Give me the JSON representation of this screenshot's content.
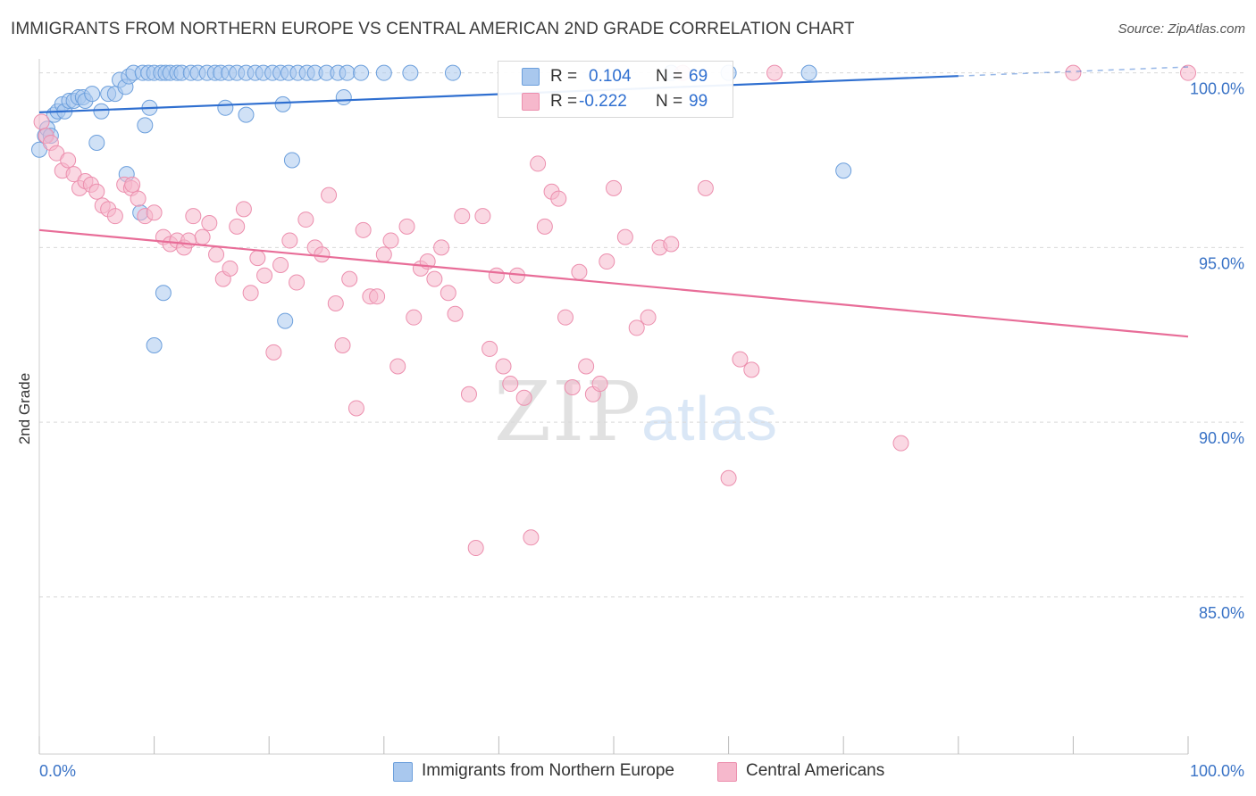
{
  "title": "IMMIGRANTS FROM NORTHERN EUROPE VS CENTRAL AMERICAN 2ND GRADE CORRELATION CHART",
  "source": "Source: ZipAtlas.com",
  "watermark": {
    "part1": "ZIP",
    "part2": "atlas"
  },
  "legend": {
    "r_label": "R =",
    "n_label": "N =",
    "rows": [
      {
        "r": "0.104",
        "n": "69"
      },
      {
        "r": "-0.222",
        "n": "99"
      }
    ]
  },
  "colors": {
    "blue_fill": "#a9c8ee",
    "blue_stroke": "#6c9fdc",
    "blue_line": "#2f6fd0",
    "pink_fill": "#f6b8cc",
    "pink_stroke": "#ec8fae",
    "pink_line": "#e86d98",
    "tick_text": "#3a73c6",
    "grid": "#d9d9d9"
  },
  "chart_data": {
    "type": "scatter",
    "title": "IMMIGRANTS FROM NORTHERN EUROPE VS CENTRAL AMERICAN 2ND GRADE CORRELATION CHART",
    "xlabel": "",
    "ylabel": "2nd Grade",
    "xlim": [
      0,
      100
    ],
    "ylim": [
      80.5,
      100.4
    ],
    "x_tick_labels": [
      "0.0%",
      "100.0%"
    ],
    "y_ticks": [
      100,
      95,
      90,
      85
    ],
    "y_tick_labels": [
      "100.0%",
      "95.0%",
      "90.0%",
      "85.0%"
    ],
    "grid": true,
    "legend_position": "top-center",
    "series": [
      {
        "name": "Immigrants from Northern Europe",
        "color": "#a9c8ee",
        "trend": {
          "x": [
            0,
            80
          ],
          "y": [
            98.87,
            99.91
          ]
        },
        "points": [
          [
            0,
            97.8
          ],
          [
            0.5,
            98.2
          ],
          [
            0.7,
            98.4
          ],
          [
            1.0,
            98.2
          ],
          [
            1.3,
            98.8
          ],
          [
            1.6,
            98.9
          ],
          [
            2.0,
            99.1
          ],
          [
            2.2,
            98.9
          ],
          [
            2.6,
            99.2
          ],
          [
            3.0,
            99.2
          ],
          [
            3.4,
            99.3
          ],
          [
            3.8,
            99.3
          ],
          [
            4.0,
            99.2
          ],
          [
            4.6,
            99.4
          ],
          [
            5.0,
            98.0
          ],
          [
            5.4,
            98.9
          ],
          [
            6.0,
            99.4
          ],
          [
            6.6,
            99.4
          ],
          [
            7.0,
            99.8
          ],
          [
            7.5,
            99.6
          ],
          [
            7.8,
            99.9
          ],
          [
            8.2,
            100
          ],
          [
            9.0,
            100
          ],
          [
            9.5,
            100
          ],
          [
            10.0,
            100
          ],
          [
            10.6,
            100
          ],
          [
            11.0,
            100
          ],
          [
            11.4,
            100
          ],
          [
            12.0,
            100
          ],
          [
            12.4,
            100
          ],
          [
            13.2,
            100
          ],
          [
            13.8,
            100
          ],
          [
            14.6,
            100
          ],
          [
            15.3,
            100
          ],
          [
            15.8,
            100
          ],
          [
            16.5,
            100
          ],
          [
            17.2,
            100
          ],
          [
            18.0,
            100
          ],
          [
            18.8,
            100
          ],
          [
            19.5,
            100
          ],
          [
            20.3,
            100
          ],
          [
            21.0,
            100
          ],
          [
            21.7,
            100
          ],
          [
            22.5,
            100
          ],
          [
            23.3,
            100
          ],
          [
            24.0,
            100
          ],
          [
            25.0,
            100
          ],
          [
            26.0,
            100
          ],
          [
            26.8,
            100
          ],
          [
            28.0,
            100
          ],
          [
            30.0,
            100
          ],
          [
            32.3,
            100
          ],
          [
            9.6,
            99.0
          ],
          [
            9.2,
            98.5
          ],
          [
            7.6,
            97.1
          ],
          [
            8.8,
            96.0
          ],
          [
            10.8,
            93.7
          ],
          [
            10.0,
            92.2
          ],
          [
            16.2,
            99.0
          ],
          [
            18.0,
            98.8
          ],
          [
            21.4,
            92.9
          ],
          [
            21.2,
            99.1
          ],
          [
            22.0,
            97.5
          ],
          [
            26.5,
            99.3
          ],
          [
            36.0,
            100
          ],
          [
            55.0,
            100
          ],
          [
            60.0,
            100
          ],
          [
            70.0,
            97.2
          ],
          [
            67.0,
            100
          ]
        ]
      },
      {
        "name": "Central Americans",
        "color": "#f6b8cc",
        "trend": {
          "x": [
            0,
            100
          ],
          "y": [
            95.5,
            92.45
          ]
        },
        "points": [
          [
            0.2,
            98.6
          ],
          [
            0.6,
            98.2
          ],
          [
            1.0,
            98.0
          ],
          [
            1.5,
            97.7
          ],
          [
            2.0,
            97.2
          ],
          [
            2.5,
            97.5
          ],
          [
            3.0,
            97.1
          ],
          [
            3.5,
            96.7
          ],
          [
            4.0,
            96.9
          ],
          [
            4.5,
            96.8
          ],
          [
            5.0,
            96.6
          ],
          [
            5.5,
            96.2
          ],
          [
            6.0,
            96.1
          ],
          [
            6.6,
            95.9
          ],
          [
            7.4,
            96.8
          ],
          [
            8.0,
            96.7
          ],
          [
            8.6,
            96.4
          ],
          [
            9.2,
            95.9
          ],
          [
            10.0,
            96.0
          ],
          [
            10.8,
            95.3
          ],
          [
            11.4,
            95.1
          ],
          [
            12.0,
            95.2
          ],
          [
            12.6,
            95.0
          ],
          [
            13.4,
            95.9
          ],
          [
            14.2,
            95.3
          ],
          [
            14.8,
            95.7
          ],
          [
            15.4,
            94.8
          ],
          [
            16.0,
            94.1
          ],
          [
            16.6,
            94.4
          ],
          [
            17.2,
            95.6
          ],
          [
            17.8,
            96.1
          ],
          [
            18.4,
            93.7
          ],
          [
            19.0,
            94.7
          ],
          [
            19.6,
            94.2
          ],
          [
            20.4,
            92.0
          ],
          [
            21.0,
            94.5
          ],
          [
            21.8,
            95.2
          ],
          [
            22.4,
            94.0
          ],
          [
            23.2,
            95.8
          ],
          [
            24.0,
            95.0
          ],
          [
            24.6,
            94.8
          ],
          [
            25.2,
            96.5
          ],
          [
            25.8,
            93.4
          ],
          [
            26.4,
            92.2
          ],
          [
            27.0,
            94.1
          ],
          [
            27.6,
            90.4
          ],
          [
            28.2,
            95.5
          ],
          [
            28.8,
            93.6
          ],
          [
            29.4,
            93.6
          ],
          [
            30.0,
            94.8
          ],
          [
            30.6,
            95.2
          ],
          [
            31.2,
            91.6
          ],
          [
            32.0,
            95.6
          ],
          [
            32.6,
            93.0
          ],
          [
            33.2,
            94.4
          ],
          [
            33.8,
            94.6
          ],
          [
            34.4,
            94.1
          ],
          [
            35.0,
            95.0
          ],
          [
            35.6,
            93.7
          ],
          [
            36.2,
            93.1
          ],
          [
            36.8,
            95.9
          ],
          [
            37.4,
            90.8
          ],
          [
            38.0,
            86.4
          ],
          [
            38.6,
            95.9
          ],
          [
            39.2,
            92.1
          ],
          [
            39.8,
            94.2
          ],
          [
            40.4,
            91.6
          ],
          [
            41.0,
            91.1
          ],
          [
            41.6,
            94.2
          ],
          [
            42.2,
            90.7
          ],
          [
            42.8,
            86.7
          ],
          [
            43.4,
            97.4
          ],
          [
            44.0,
            95.6
          ],
          [
            44.6,
            96.6
          ],
          [
            45.2,
            96.4
          ],
          [
            45.8,
            93.0
          ],
          [
            46.4,
            91.0
          ],
          [
            47.0,
            94.3
          ],
          [
            47.6,
            91.6
          ],
          [
            48.2,
            90.8
          ],
          [
            48.8,
            91.1
          ],
          [
            49.4,
            94.6
          ],
          [
            50.0,
            96.7
          ],
          [
            51.0,
            95.3
          ],
          [
            52.0,
            92.7
          ],
          [
            53.0,
            93.0
          ],
          [
            54.0,
            95.0
          ],
          [
            55.0,
            95.1
          ],
          [
            56.0,
            100
          ],
          [
            58.0,
            96.7
          ],
          [
            60.0,
            88.4
          ],
          [
            61.0,
            91.8
          ],
          [
            62.0,
            91.5
          ],
          [
            64.0,
            100
          ],
          [
            75.0,
            89.4
          ],
          [
            90.0,
            100
          ],
          [
            100,
            100
          ],
          [
            8.1,
            96.8
          ],
          [
            13.0,
            95.2
          ]
        ]
      }
    ]
  },
  "bottom_legend": [
    {
      "label": "Immigrants from Northern Europe"
    },
    {
      "label": "Central Americans"
    }
  ]
}
